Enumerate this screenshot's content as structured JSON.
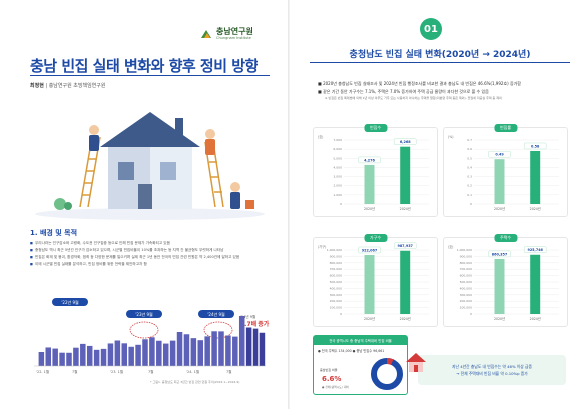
{
  "left": {
    "logo": {
      "name_ko": "충남연구원",
      "name_en": "Chungnam Institute"
    },
    "title": "충남 빈집 실태 변화와 향후 정비 방향",
    "author_label": "최정현",
    "author_affil": "충남연구원 초빙책임연구원",
    "section": {
      "heading": "1. 배경 및 목적",
      "items": [
        "우리나라는 인구감소와 고령화, 수도권 인구집중 등으로 인해 빈집 문제가 가속화되고 있음",
        "충청남도 역시 최근 5년간 인구가 감소하고 있으며, 시군별 빈집비율이 10%를 초과하는 등 지역 간 불균형도 뚜렷하게 나타남",
        "빈집은 화재 및 붕괴, 환경악화, 범죄 등 다양한 문제를 일으키며 실제 최근 1년 동안 전국의 빈집 관련 민원은 약 2,400건에 달하고 있음",
        "이에 시군별 빈집 실태를 분석하고, 빈집 정비를 위한 전략을 제안하고자 함"
      ]
    },
    "bar_chart": {
      "annotations": [
        "'22년 9월",
        "'23년 9월",
        "'24년 9월"
      ],
      "callout_label": "'24년 9월",
      "callout_value": "1.7배 증가",
      "x_ticks": [
        "'22. 1월",
        "7월",
        "'23. 1월",
        "7월",
        "'24. 1월",
        "7월"
      ],
      "note": "* 그림1. 충청남도 최근 3년간 빈집 관련 민원 추이(2022.1~2024.9)"
    }
  },
  "right": {
    "section_number": "01",
    "title": "충청남도 빈집 실태 변화(2020년 → 2024년)",
    "bullets": [
      {
        "text": "2020년 충청남도 빈집 실태조사 및 2024년 빈집 행정조사를 비교한 결과 충남도 내 빈집은 46.6%(1,992호) 증가함",
        "sub": false
      },
      {
        "text": "같은 기간 동안 가구수는 7.1%, 주택은 7.0% 증가하여 주택 공급 물량이 과다한 것으로 볼 수 있음",
        "sub": false
      },
      {
        "text": "※ 빈집은 빈집 특례법에 의해 1년 이상 아무도 거주 또는 사용하지 아니하는 주택을 말함(미분양 주택 등은 제외), 전월세 미공실 주택 등 제외",
        "sub": true
      }
    ],
    "panels": [
      {
        "tag": "빈집수",
        "unit": "(호)",
        "yticks": [
          "7,000",
          "6,000",
          "5,000",
          "4,000",
          "3,000",
          "2,000",
          "1,000",
          "0"
        ],
        "ymax": 7000,
        "categories": [
          "2020년",
          "2024년"
        ],
        "values": [
          4276,
          6268
        ],
        "labels": [
          "4,276",
          "6,268"
        ]
      },
      {
        "tag": "빈집률",
        "unit": "(%)",
        "yticks": [
          "0.7",
          "0.6",
          "0.5",
          "0.4",
          "0.3",
          "0.2",
          "0.1",
          "0"
        ],
        "ymax": 0.7,
        "categories": [
          "2020년",
          "2024년"
        ],
        "values": [
          0.49,
          0.58
        ],
        "labels": [
          "0.49",
          "0.58"
        ]
      },
      {
        "tag": "가구수",
        "unit": "(가구)",
        "yticks": [
          "1,000,000",
          "900,000",
          "800,000",
          "700,000",
          "600,000",
          "500,000",
          "400,000",
          "300,000",
          "200,000",
          "100,000",
          "0"
        ],
        "ymax": 1000000,
        "categories": [
          "2020년",
          "2024년"
        ],
        "values": [
          922067,
          987937
        ],
        "labels": [
          "922,067",
          "987,937"
        ]
      },
      {
        "tag": "주택수",
        "unit": "(호)",
        "yticks": [
          "1,000,000",
          "900,000",
          "800,000",
          "700,000",
          "600,000",
          "500,000",
          "400,000",
          "300,000",
          "200,000",
          "100,000",
          "0"
        ],
        "ymax": 1000000,
        "categories": [
          "2020년",
          "2024년"
        ],
        "values": [
          860357,
          925746
        ],
        "labels": [
          "860,357",
          "925,746"
        ]
      }
    ],
    "green_box": {
      "header": "전국 광역시도 중 충남의 주택대비 빈집 비율",
      "row": "● 전국 주택수 134,000 ● 충남 빈집수 96,661",
      "donut_label": "충남빈집 비율",
      "donut_pct": "6.6%",
      "donut_sub": "● 전체(광역시도) 대비",
      "pct_value": 6.6
    },
    "summary": "지난 4년간 충남도 내 빈집수는 약 46% 이상 급증\n→ 전체 주택대비 빈집 비율 약 0.10%p 증가"
  },
  "colors": {
    "brand_blue": "#1c4aa6",
    "green": "#27b07a",
    "chart_purple": "#3b3f9a",
    "highlight_red": "#d43a3a"
  }
}
